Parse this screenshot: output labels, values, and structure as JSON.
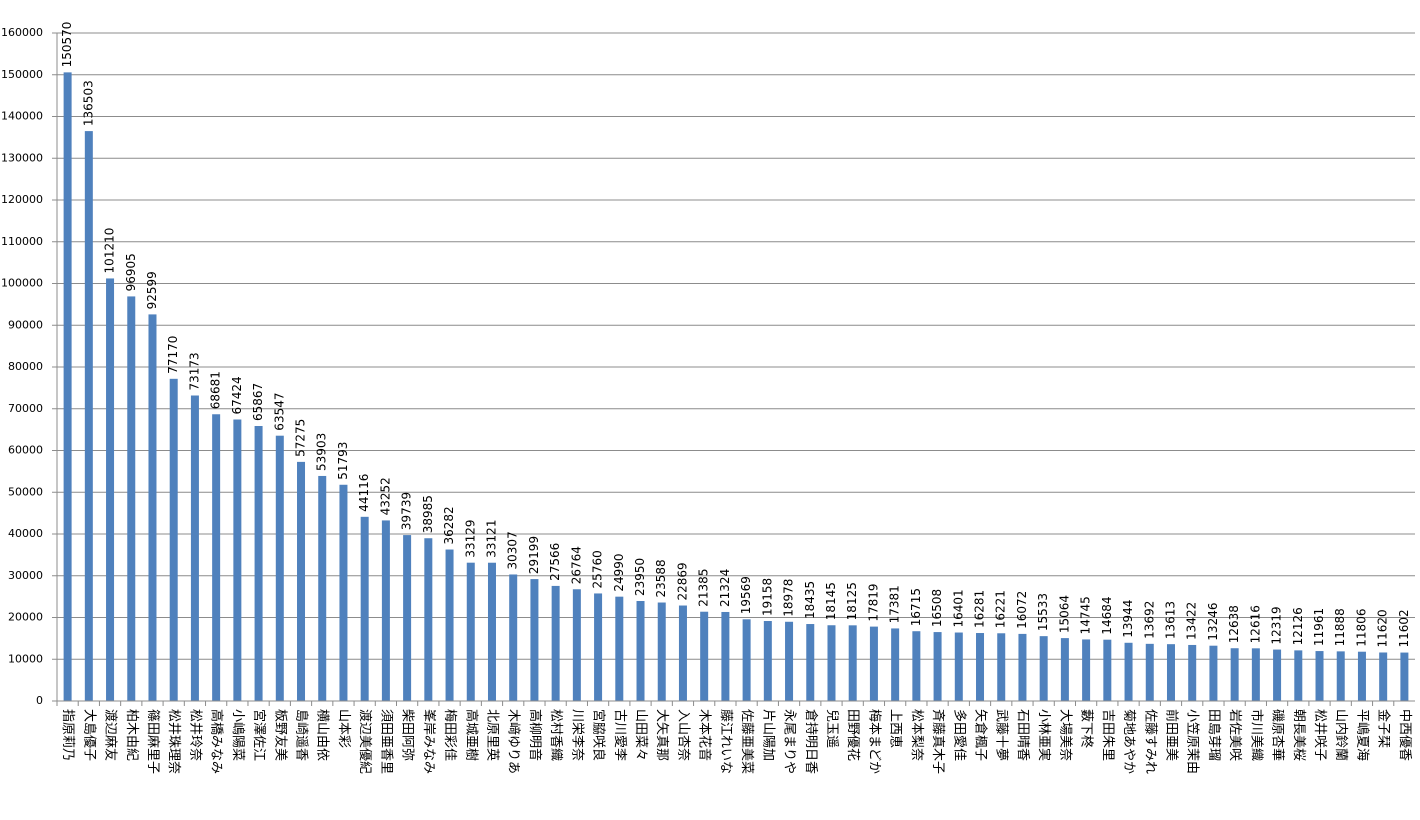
{
  "chart_data": {
    "type": "bar",
    "categories": [
      "指原莉乃",
      "大島優子",
      "渡辺麻友",
      "柏木由紀",
      "篠田麻里子",
      "松井珠理奈",
      "松井玲奈",
      "高橋みなみ",
      "小嶋陽菜",
      "宮澤佐江",
      "板野友美",
      "島崎遥香",
      "横山由依",
      "山本彩",
      "渡辺美優紀",
      "須田亜香里",
      "柴田阿弥",
      "峯岸みなみ",
      "梅田彩佳",
      "高城亜樹",
      "北原里英",
      "木﨑ゆりあ",
      "高柳明音",
      "松村香織",
      "川栄李奈",
      "宮脇咲良",
      "古川愛李",
      "山田菜々",
      "大矢真那",
      "入山杏奈",
      "木本花音",
      "藤江れいな",
      "佐藤亜美菜",
      "片山陽加",
      "永尾まりや",
      "倉持明日香",
      "兒玉遥",
      "田野優花",
      "梅本まどか",
      "上西恵",
      "松本梨奈",
      "斉藤真木子",
      "多田愛佳",
      "矢倉楓子",
      "武藤十夢",
      "石田晴香",
      "小林亜実",
      "大場美奈",
      "藪下柊",
      "吉田朱里",
      "菊地あやか",
      "佐藤すみれ",
      "前田亜美",
      "小笠原茉由",
      "田島芽瑠",
      "岩佐美咲",
      "市川美織",
      "磯原杏華",
      "朝長美桜",
      "松井咲子",
      "山内鈴蘭",
      "平嶋夏海",
      "金子栞",
      "中西優香"
    ],
    "values": [
      150570,
      136503,
      101210,
      96905,
      92599,
      77170,
      73173,
      68681,
      67424,
      65867,
      63547,
      57275,
      53903,
      51793,
      44116,
      43252,
      39739,
      38985,
      36282,
      33129,
      33121,
      30307,
      29199,
      27566,
      26764,
      25760,
      24990,
      23950,
      23588,
      22869,
      21385,
      21324,
      19569,
      19158,
      18978,
      18435,
      18145,
      18125,
      17819,
      17381,
      16715,
      16508,
      16401,
      16281,
      16221,
      16072,
      15533,
      15064,
      14745,
      14684,
      13944,
      13692,
      13613,
      13422,
      13246,
      12638,
      12616,
      12319,
      12126,
      11961,
      11888,
      11806,
      11620,
      11602
    ],
    "color": "#4f81bd",
    "ylim": [
      0,
      160000
    ],
    "yticks": [
      0,
      10000,
      20000,
      30000,
      40000,
      50000,
      60000,
      70000,
      80000,
      90000,
      100000,
      110000,
      120000,
      130000,
      140000,
      150000,
      160000
    ],
    "grid": true
  }
}
